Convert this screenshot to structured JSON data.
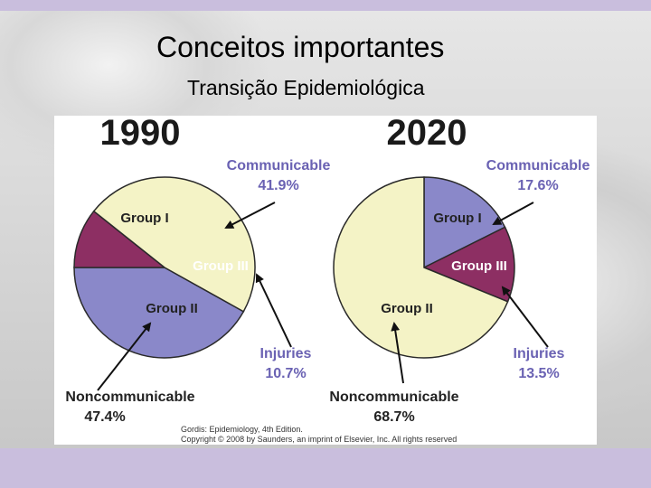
{
  "slide": {
    "title": "Conceitos importantes",
    "subtitle": "Transição Epidemiológica"
  },
  "colors": {
    "communicable": "#8a88c9",
    "injuries": "#8d2f63",
    "noncommunicable": "#f4f3c6",
    "label_blue": "#6a62b3"
  },
  "chart_data": [
    {
      "type": "pie",
      "title": "1990",
      "slices": [
        {
          "key": "group1",
          "name": "Group I",
          "category": "Communicable",
          "value": 41.9,
          "pct_label": "41.9%"
        },
        {
          "key": "group3",
          "name": "Group III",
          "category": "Injuries",
          "value": 10.7,
          "pct_label": "10.7%"
        },
        {
          "key": "group2",
          "name": "Group II",
          "category": "Noncommunicable",
          "value": 47.4,
          "pct_label": "47.4%"
        }
      ]
    },
    {
      "type": "pie",
      "title": "2020",
      "slices": [
        {
          "key": "group1",
          "name": "Group I",
          "category": "Communicable",
          "value": 17.6,
          "pct_label": "17.6%"
        },
        {
          "key": "group3",
          "name": "Group III",
          "category": "Injuries",
          "value": 13.5,
          "pct_label": "13.5%"
        },
        {
          "key": "group2",
          "name": "Group II",
          "category": "Noncommunicable",
          "value": 68.7,
          "pct_label": "68.7%"
        }
      ]
    }
  ],
  "credits": {
    "line1": "Gordis: Epidemiology, 4th Edition.",
    "line2": "Copyright © 2008 by Saunders, an imprint of Elsevier, Inc. All rights reserved"
  }
}
